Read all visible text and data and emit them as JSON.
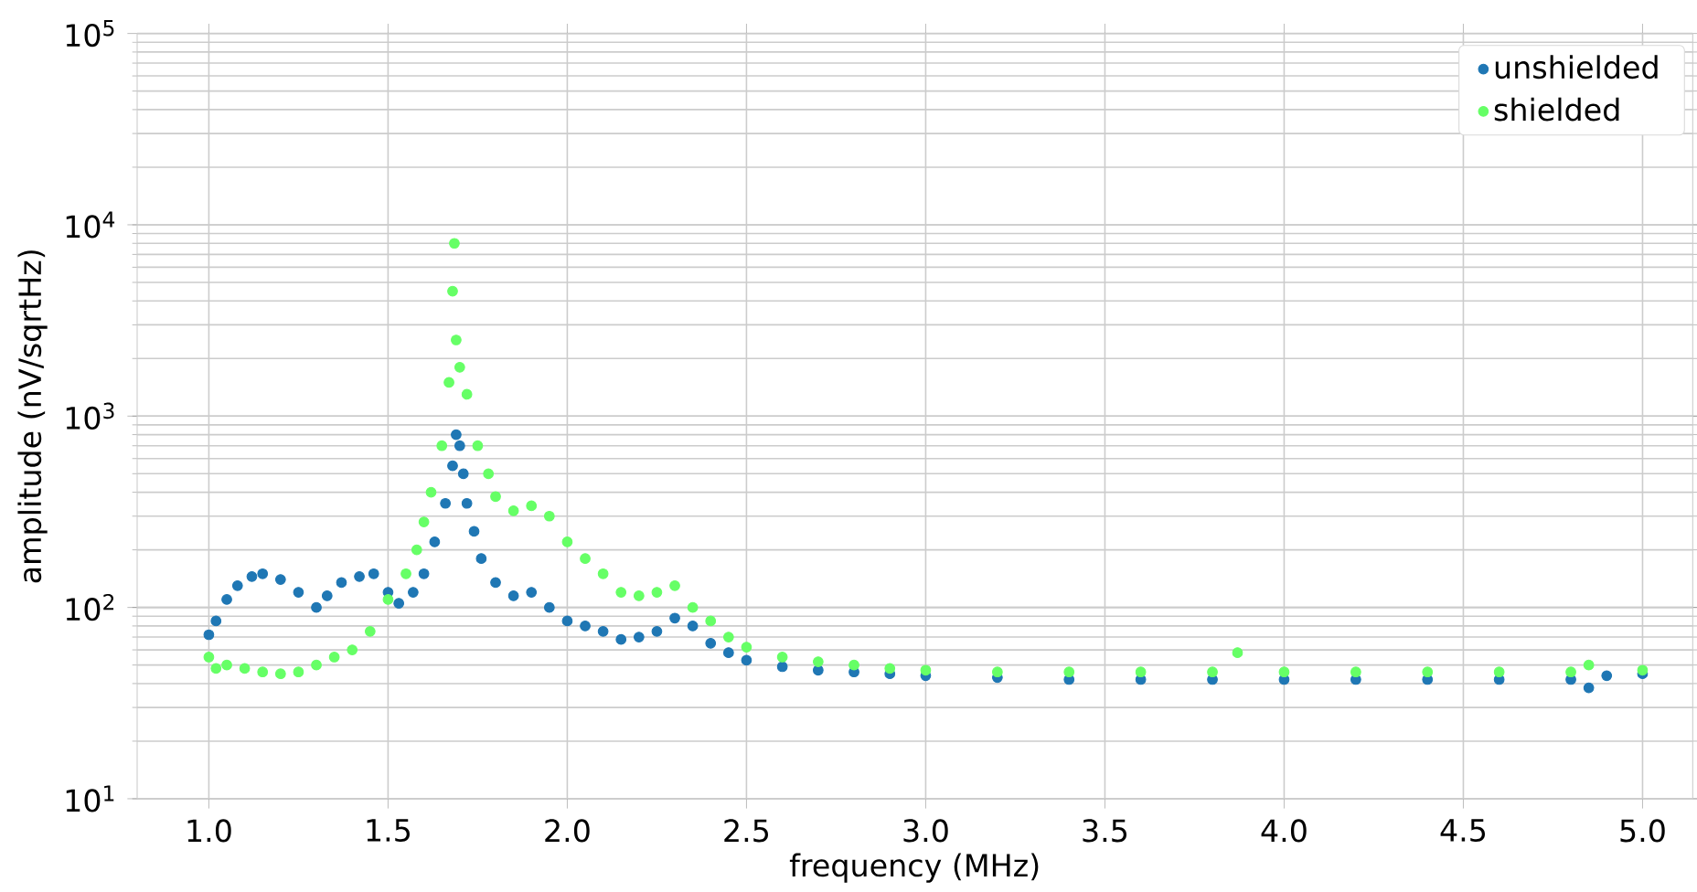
{
  "chart_data": {
    "type": "scatter",
    "xlabel": "frequency (MHz)",
    "ylabel": "amplitude (nV/sqrtHz)",
    "log": "y",
    "grid": true,
    "legend": "top right",
    "marker": "circle",
    "xlim": [
      0.8,
      5.14
    ],
    "ylim": [
      10,
      100000
    ],
    "xticks": [
      {
        "value": 1,
        "label": "1.0"
      },
      {
        "value": 1.5,
        "label": "1.5"
      },
      {
        "value": 2,
        "label": "2.0"
      },
      {
        "value": 2.5,
        "label": "2.5"
      },
      {
        "value": 3,
        "label": "3.0"
      },
      {
        "value": 3.5,
        "label": "3.5"
      },
      {
        "value": 4,
        "label": "4.0"
      },
      {
        "value": 4.5,
        "label": "4.5"
      },
      {
        "value": 5,
        "label": "5.0"
      }
    ],
    "yticks": [
      {
        "value": 10,
        "label": "10$^{1}$"
      },
      {
        "value": 100,
        "label": "10$^{2}$"
      },
      {
        "value": 1000,
        "label": "10$^{3}$"
      },
      {
        "value": 10000,
        "label": "10$^{4}$"
      },
      {
        "value": 100000,
        "label": "10$^{5}$"
      }
    ],
    "series": [
      {
        "name": "unshielded",
        "color": "#1f77b4",
        "x": [
          1.0,
          1.02,
          1.05,
          1.08,
          1.12,
          1.15,
          1.2,
          1.25,
          1.3,
          1.33,
          1.37,
          1.42,
          1.46,
          1.5,
          1.53,
          1.57,
          1.6,
          1.63,
          1.66,
          1.68,
          1.69,
          1.7,
          1.71,
          1.72,
          1.74,
          1.76,
          1.8,
          1.85,
          1.9,
          1.95,
          2.0,
          2.05,
          2.1,
          2.15,
          2.2,
          2.25,
          2.3,
          2.35,
          2.4,
          2.45,
          2.5,
          2.6,
          2.7,
          2.8,
          2.9,
          3.0,
          3.2,
          3.4,
          3.6,
          3.8,
          4.0,
          4.2,
          4.4,
          4.6,
          4.8,
          4.85,
          4.9,
          5.0
        ],
        "values": [
          72,
          85,
          110,
          130,
          145,
          150,
          140,
          120,
          100,
          115,
          135,
          145,
          150,
          120,
          105,
          120,
          150,
          220,
          350,
          550,
          800,
          700,
          500,
          350,
          250,
          180,
          135,
          115,
          120,
          100,
          85,
          80,
          75,
          68,
          70,
          75,
          88,
          80,
          65,
          58,
          53,
          49,
          47,
          46,
          45,
          44,
          43,
          42,
          42,
          42,
          42,
          42,
          42,
          42,
          42,
          38,
          44,
          45
        ]
      },
      {
        "name": "shielded",
        "color": "#66ff66",
        "x": [
          1.0,
          1.02,
          1.05,
          1.1,
          1.15,
          1.2,
          1.25,
          1.3,
          1.35,
          1.4,
          1.45,
          1.5,
          1.55,
          1.58,
          1.6,
          1.62,
          1.65,
          1.67,
          1.68,
          1.685,
          1.69,
          1.7,
          1.72,
          1.75,
          1.78,
          1.8,
          1.85,
          1.9,
          1.95,
          2.0,
          2.05,
          2.1,
          2.15,
          2.2,
          2.25,
          2.3,
          2.35,
          2.4,
          2.45,
          2.5,
          2.6,
          2.7,
          2.8,
          2.9,
          3.0,
          3.2,
          3.4,
          3.6,
          3.8,
          3.87,
          4.0,
          4.2,
          4.4,
          4.6,
          4.8,
          4.85,
          5.0
        ],
        "values": [
          55,
          48,
          50,
          48,
          46,
          45,
          46,
          50,
          55,
          60,
          75,
          110,
          150,
          200,
          280,
          400,
          700,
          1500,
          4500,
          8000,
          2500,
          1800,
          1300,
          700,
          500,
          380,
          320,
          340,
          300,
          220,
          180,
          150,
          120,
          115,
          120,
          130,
          100,
          85,
          70,
          62,
          55,
          52,
          50,
          48,
          47,
          46,
          46,
          46,
          46,
          58,
          46,
          46,
          46,
          46,
          46,
          50,
          47
        ]
      }
    ]
  }
}
